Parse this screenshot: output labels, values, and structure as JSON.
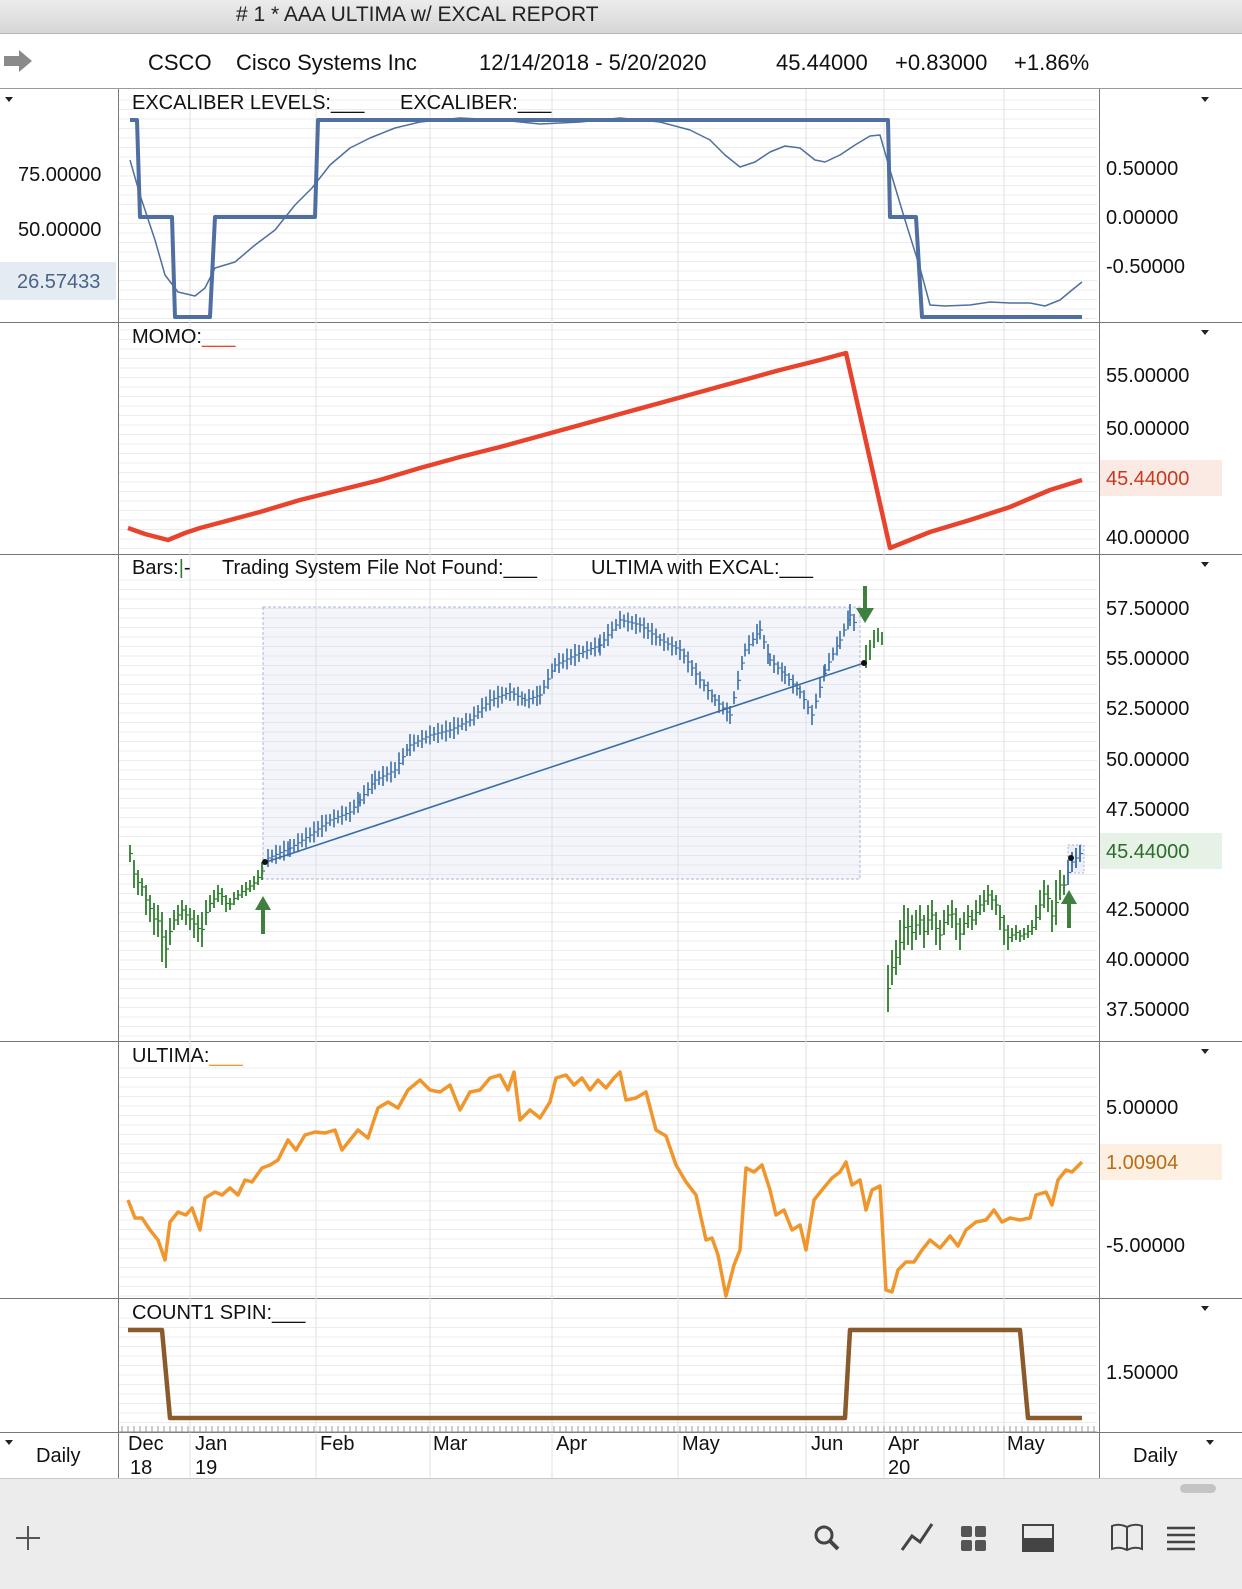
{
  "window": {
    "title": "#  1 * AAA ULTIMA w/ EXCAL REPORT"
  },
  "header": {
    "symbol": "CSCO",
    "name": "Cisco Systems Inc",
    "date_range": "12/14/2018 - 5/20/2020",
    "last": "45.44000",
    "change": "+0.83000",
    "pct_change": "+1.86%"
  },
  "panels": {
    "excal": {
      "title_levels": "EXCALIBER LEVELS:___",
      "title_excal": "EXCALIBER:___",
      "left_labels": [
        "75.00000",
        "50.00000"
      ],
      "left_highlight": "26.57433",
      "right_labels": [
        "0.50000",
        "0.00000",
        "-0.50000"
      ]
    },
    "momo": {
      "title": "MOMO:",
      "title_suffix": "___",
      "right_labels": [
        "55.00000",
        "50.00000",
        "40.00000"
      ],
      "right_highlight": "45.44000"
    },
    "bars": {
      "title_prefix": "Bars:",
      "title_bar_glyph": "|",
      "title_suffix": "-",
      "title_tsf": "Trading System File Not Found:___",
      "title_ultima": "ULTIMA with EXCAL:___",
      "right_labels": [
        "57.50000",
        "55.00000",
        "52.50000",
        "50.00000",
        "47.50000",
        "42.50000",
        "40.00000",
        "37.50000"
      ],
      "right_highlight": "45.44000"
    },
    "ultima": {
      "title": "ULTIMA:",
      "title_suffix": "___",
      "right_labels": [
        "5.00000",
        "-5.00000"
      ],
      "right_highlight": "1.00904"
    },
    "count1": {
      "title": "COUNT1 SPIN:___",
      "right_labels": [
        "1.50000"
      ]
    }
  },
  "xaxis": {
    "months": [
      "Dec",
      "Jan",
      "Feb",
      "Mar",
      "Apr",
      "May",
      "Jun",
      "Apr",
      "May"
    ],
    "years": [
      "18",
      "19",
      "20"
    ],
    "left_period": "Daily",
    "right_period": "Daily"
  },
  "colors": {
    "excal_line": "#4f6fa0",
    "momo_line": "#e8432c",
    "bars_green": "#2e7d2e",
    "bars_blue": "#3a6ea8",
    "ultima_line": "#f0962c",
    "count1_line": "#8b5a2b",
    "arrow_green": "#3f7f3f"
  },
  "footer": {
    "icons": [
      "plus-icon",
      "search-icon",
      "line-chart-icon",
      "grid-icon",
      "panel-icon",
      "book-icon",
      "menu-icon"
    ]
  },
  "chart_data": [
    {
      "type": "line",
      "title": "EXCALIBER LEVELS",
      "series": [
        {
          "name": "EXCALIBER LEVELS",
          "values": [
            1,
            0,
            -1,
            0,
            1,
            1,
            1,
            0,
            -1
          ]
        },
        {
          "name": "EXCALIBER",
          "values": [
            0.6,
            -0.8,
            -0.5,
            0.7,
            1.0,
            0.5,
            0.9,
            -0.9,
            -0.7
          ]
        }
      ],
      "ylim": [
        -1,
        1
      ]
    },
    {
      "type": "line",
      "title": "MOMO",
      "series": [
        {
          "name": "MOMO",
          "values": [
            41.2,
            40.2,
            45.5,
            51.0,
            57.1,
            39.8,
            45.44
          ]
        }
      ],
      "ylim": [
        39,
        58
      ]
    },
    {
      "type": "bar",
      "title": "Bars",
      "series": [
        {
          "name": "CSCO",
          "values": [
            44.5,
            40.0,
            44.0,
            47.0,
            53.5,
            57.5,
            51.5,
            57.5,
            55.0,
            38.0,
            43.0,
            42.0,
            45.44
          ]
        }
      ],
      "annotations": [
        "Trading System File Not Found",
        "ULTIMA with EXCAL"
      ],
      "ylim": [
        37,
        58.5
      ]
    },
    {
      "type": "line",
      "title": "ULTIMA",
      "series": [
        {
          "name": "ULTIMA",
          "values": [
            -3.0,
            -6.0,
            -3.0,
            0.0,
            4.5,
            6.5,
            6.0,
            6.5,
            -9.0,
            0.5,
            -10.0,
            -3.0,
            1.00904
          ]
        }
      ],
      "ylim": [
        -10,
        8
      ]
    },
    {
      "type": "line",
      "title": "COUNT1 SPIN",
      "series": [
        {
          "name": "COUNT1 SPIN",
          "values": [
            2,
            1,
            1,
            2,
            2,
            1
          ]
        }
      ],
      "ylim": [
        0.9,
        2.1
      ]
    }
  ]
}
